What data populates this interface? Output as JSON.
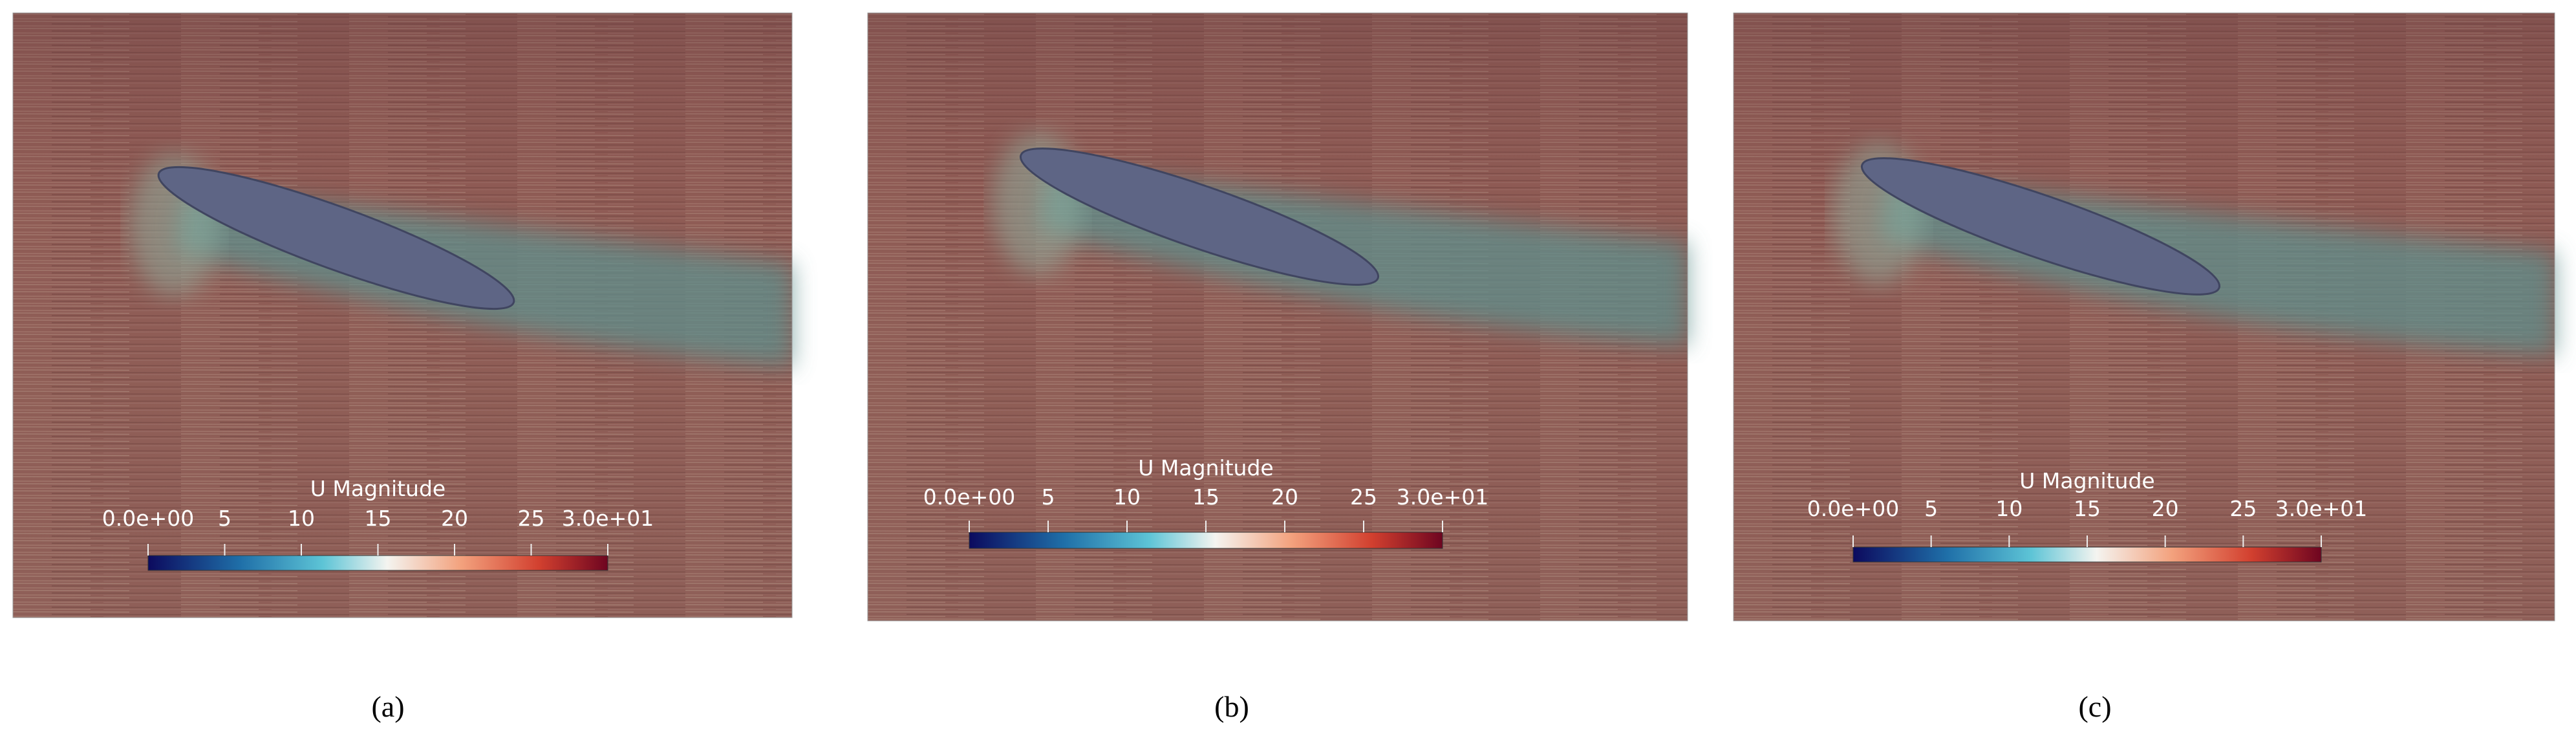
{
  "panels": [
    {
      "label": "(a)",
      "colorbar": {
        "title": "U Magnitude",
        "range": [
          0,
          30
        ],
        "ticks": [
          {
            "value": 0,
            "label": "0.0e+00"
          },
          5,
          10,
          15,
          20,
          25,
          {
            "value": 30,
            "label": "3.0e+01"
          }
        ]
      }
    },
    {
      "label": "(b)",
      "colorbar": {
        "title": "U Magnitude",
        "range": [
          0,
          30
        ],
        "ticks": [
          {
            "value": 0,
            "label": "0.0e+00"
          },
          5,
          10,
          15,
          20,
          25,
          {
            "value": 30,
            "label": "3.0e+01"
          }
        ]
      }
    },
    {
      "label": "(c)",
      "colorbar": {
        "title": "U Magnitude",
        "range": [
          0,
          30
        ],
        "ticks": [
          {
            "value": 0,
            "label": "0.0e+00"
          },
          5,
          10,
          15,
          20,
          25,
          {
            "value": 30,
            "label": "3.0e+01"
          }
        ]
      }
    }
  ]
}
